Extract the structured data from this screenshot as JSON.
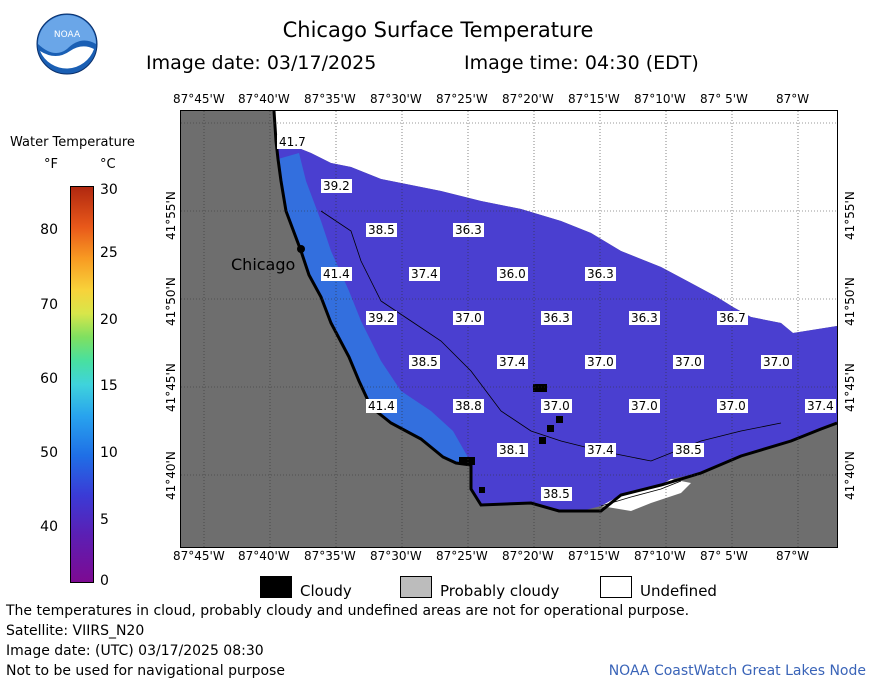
{
  "header": {
    "title": "Chicago Surface Temperature",
    "image_date": "Image date: 03/17/2025",
    "image_time": "Image time: 04:30 (EDT)",
    "logo_text": "NOAA"
  },
  "colorbar": {
    "title": "Water Temperature",
    "unit_f": "°F",
    "unit_c": "°C",
    "ticks_f": [
      "80",
      "70",
      "60",
      "50",
      "40"
    ],
    "ticks_c": [
      "30",
      "25",
      "20",
      "15",
      "10",
      "5",
      "0"
    ]
  },
  "map": {
    "lon_labels": [
      "87°45'W",
      "87°40'W",
      "87°35'W",
      "87°30'W",
      "87°25'W",
      "87°20'W",
      "87°15'W",
      "87°10'W",
      "87° 5'W",
      "87°W"
    ],
    "lat_labels": [
      "41°55'N",
      "41°50'N",
      "41°45'N",
      "41°40'N"
    ],
    "city_label": "Chicago",
    "temperatures": [
      "41.7",
      "39.2",
      "38.5",
      "36.3",
      "41.4",
      "37.4",
      "36.0",
      "36.3",
      "39.2",
      "37.0",
      "36.3",
      "36.3",
      "36.7",
      "38.5",
      "37.4",
      "37.0",
      "37.0",
      "37.0",
      "41.4",
      "38.8",
      "37.0",
      "37.0",
      "37.0",
      "37.4",
      "38.1",
      "37.4",
      "38.5",
      "38.5"
    ],
    "colors": {
      "land": "#6e6e6e",
      "water": "#4a3fd0",
      "coast": "#000000"
    }
  },
  "legend": {
    "cloudy": "Cloudy",
    "probably_cloudy": "Probably cloudy",
    "undefined": "Undefined"
  },
  "footer": {
    "note1": "The temperatures in cloud, probably cloudy and undefined areas are not for operational purpose.",
    "satellite": "Satellite: VIIRS_N20",
    "utc_date": "Image date: (UTC) 03/17/2025  08:30",
    "nav_warning": "Not to be used for navigational purpose",
    "credit": "NOAA CoastWatch Great Lakes Node"
  }
}
